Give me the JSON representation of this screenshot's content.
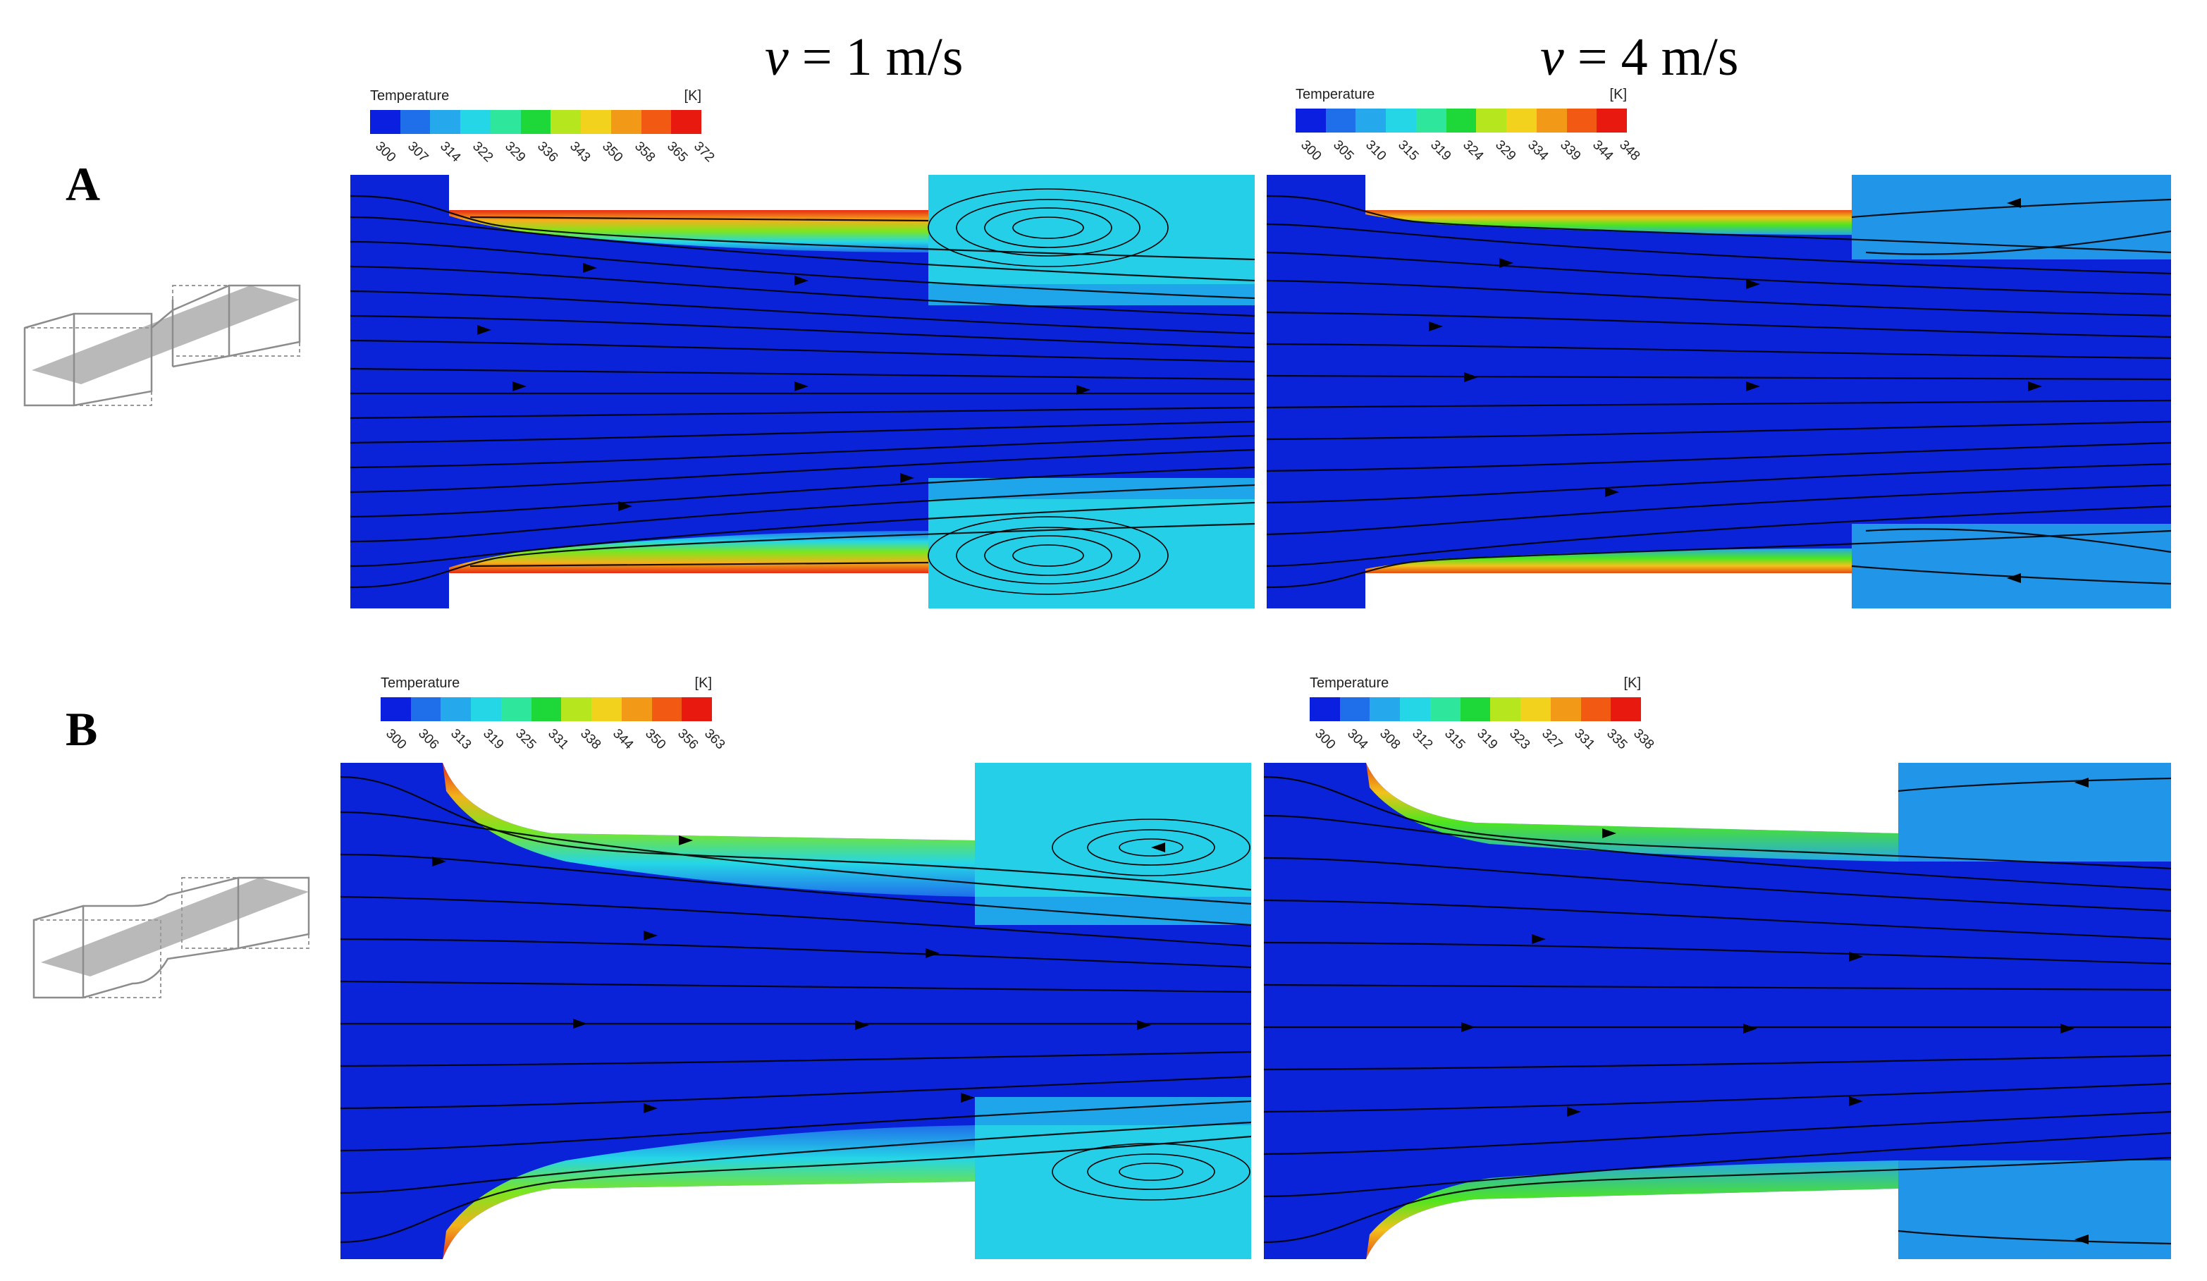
{
  "columns": [
    {
      "var": "v",
      "rest": " = 1 m/s"
    },
    {
      "var": "v",
      "rest": " = 4 m/s"
    }
  ],
  "rows": [
    "A",
    "B"
  ],
  "legend": {
    "title": "Temperature",
    "unit": "[K]",
    "colors": [
      "#0a1fe0",
      "#1f6fea",
      "#25a8ec",
      "#25d6e6",
      "#2ee69c",
      "#1ed83a",
      "#b6e61e",
      "#f2d21c",
      "#f29a18",
      "#f25a14",
      "#e81a10"
    ]
  },
  "panels": [
    {
      "id": "A-1",
      "row": "A",
      "speed": "1 m/s",
      "ticks": [
        "300",
        "307",
        "314",
        "322",
        "329",
        "336",
        "343",
        "350",
        "358",
        "365",
        "372"
      ]
    },
    {
      "id": "A-4",
      "row": "A",
      "speed": "4 m/s",
      "ticks": [
        "300",
        "305",
        "310",
        "315",
        "319",
        "324",
        "329",
        "334",
        "339",
        "344",
        "348"
      ]
    },
    {
      "id": "B-1",
      "row": "B",
      "speed": "1 m/s",
      "ticks": [
        "300",
        "306",
        "313",
        "319",
        "325",
        "331",
        "338",
        "344",
        "350",
        "356",
        "363"
      ]
    },
    {
      "id": "B-4",
      "row": "B",
      "speed": "4 m/s",
      "ticks": [
        "300",
        "304",
        "308",
        "312",
        "315",
        "319",
        "323",
        "327",
        "331",
        "335",
        "338"
      ]
    }
  ]
}
